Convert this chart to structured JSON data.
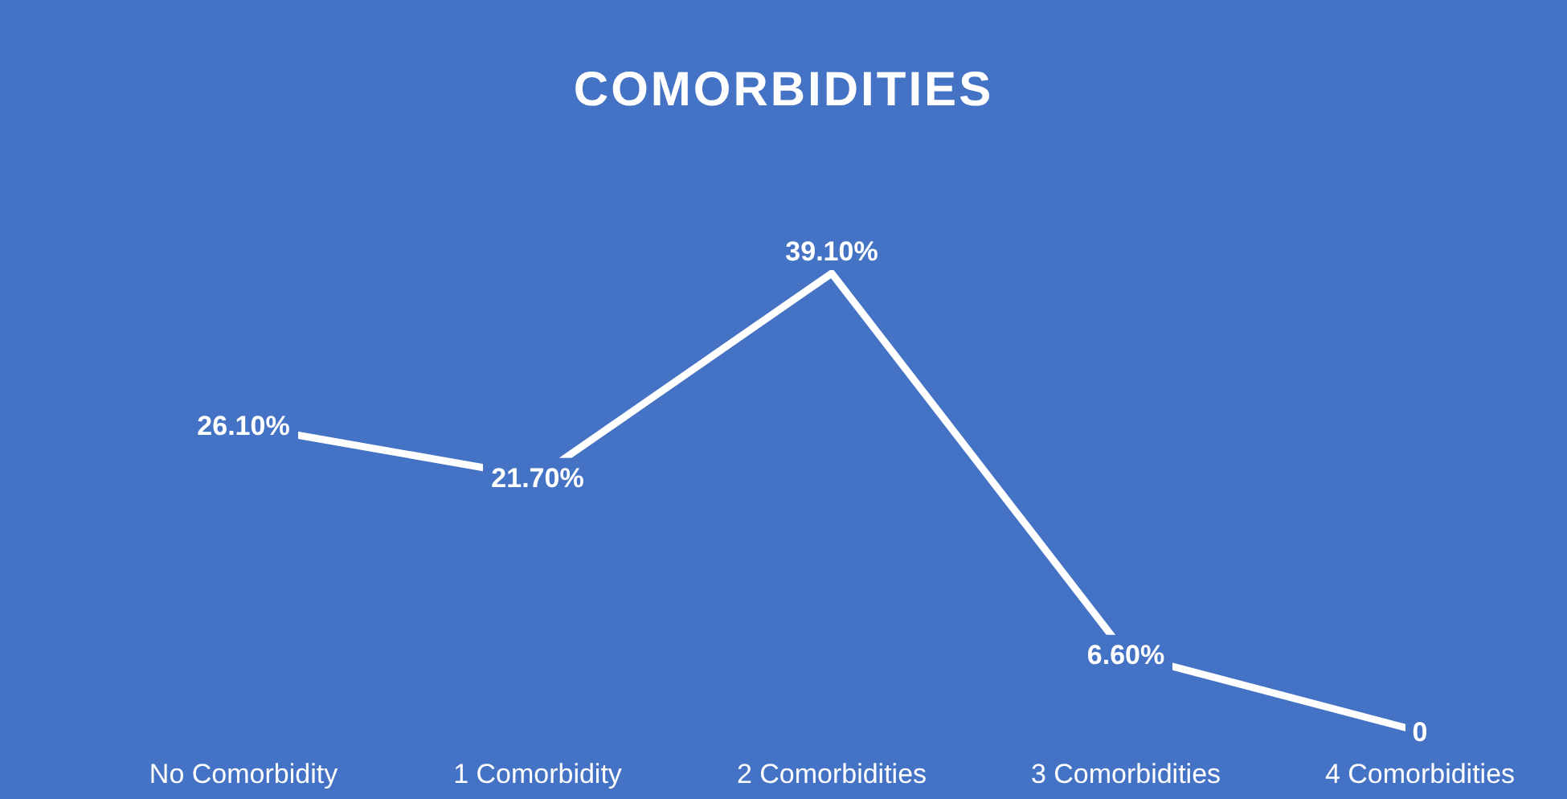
{
  "chart_data": {
    "type": "line",
    "title": "COMORBIDITIES",
    "categories": [
      "No Comorbidity",
      "1 Comorbidity",
      "2 Comorbidities",
      "3 Comorbidities",
      "4 Comorbidities"
    ],
    "series": [
      {
        "color": "#ffffff",
        "values": [
          26.1,
          21.7,
          39.1,
          6.6,
          0
        ],
        "value_labels": [
          "26.10%",
          "21.70%",
          "39.10%",
          "6.60%",
          "0"
        ]
      }
    ],
    "marker": "none",
    "line_style": "solid"
  }
}
